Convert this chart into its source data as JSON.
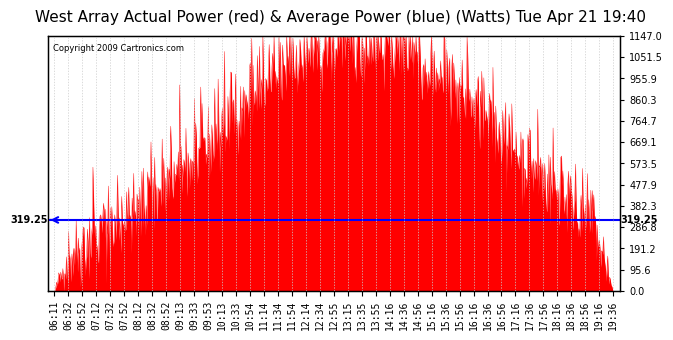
{
  "title": "West Array Actual Power (red) & Average Power (blue) (Watts) Tue Apr 21 19:40",
  "copyright": "Copyright 2009 Cartronics.com",
  "avg_power": 319.25,
  "y_max": 1147.0,
  "y_min": 0.0,
  "yticks_right": [
    0.0,
    95.6,
    191.2,
    286.8,
    382.3,
    477.9,
    573.5,
    669.1,
    764.7,
    860.3,
    955.9,
    1051.5,
    1147.0
  ],
  "background_color": "#ffffff",
  "plot_bg_color": "#ffffff",
  "grid_color": "#cccccc",
  "fill_color": "#ff0000",
  "line_color": "#0000ff",
  "title_fontsize": 11,
  "tick_fontsize": 7,
  "x_labels": [
    "06:11",
    "06:32",
    "06:52",
    "07:12",
    "07:32",
    "07:52",
    "08:12",
    "08:32",
    "08:52",
    "09:13",
    "09:33",
    "09:53",
    "10:13",
    "10:33",
    "10:54",
    "11:14",
    "11:34",
    "11:54",
    "12:14",
    "12:34",
    "12:55",
    "13:15",
    "13:35",
    "13:55",
    "14:16",
    "14:36",
    "14:56",
    "15:16",
    "15:36",
    "15:56",
    "16:16",
    "16:36",
    "16:56",
    "17:16",
    "17:36",
    "17:56",
    "18:16",
    "18:36",
    "18:56",
    "19:16",
    "19:36"
  ]
}
